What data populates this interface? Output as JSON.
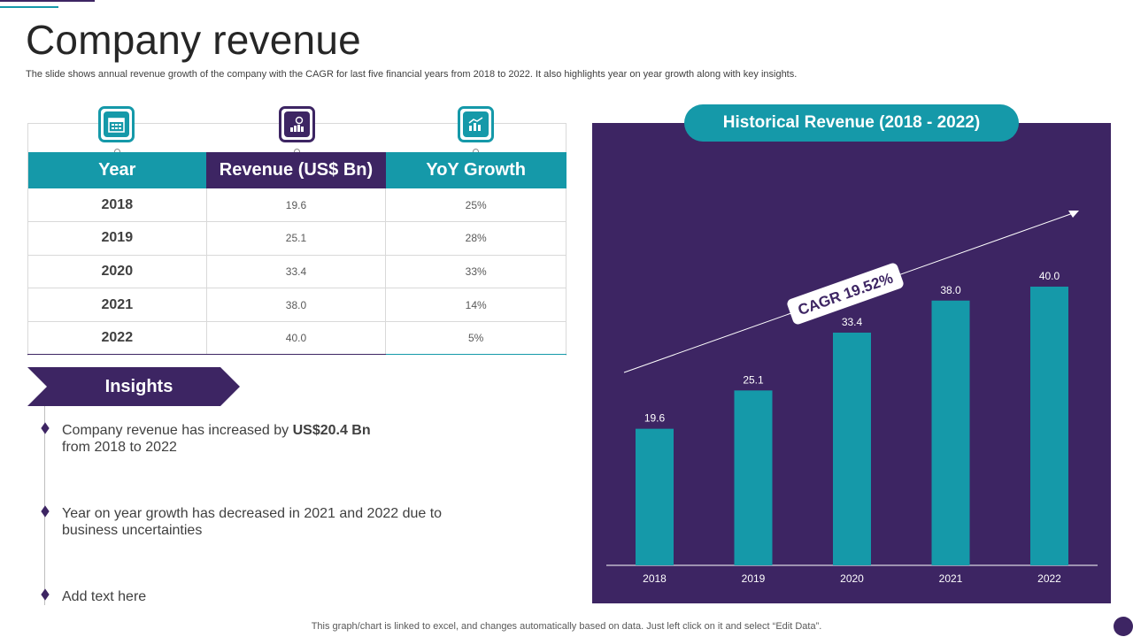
{
  "title": "Company revenue",
  "subtitle": "The slide shows annual revenue growth of the company with the CAGR for last five financial years from 2018 to 2022. It also highlights year on year growth along with key insights.",
  "table": {
    "headers": [
      "Year",
      "Revenue (US$ Bn)",
      "YoY Growth"
    ],
    "rows": [
      [
        "2018",
        "19.6",
        "25%"
      ],
      [
        "2019",
        "25.1",
        "28%"
      ],
      [
        "2020",
        "33.4",
        "33%"
      ],
      [
        "2021",
        "38.0",
        "14%"
      ],
      [
        "2022",
        "40.0",
        "5%"
      ]
    ]
  },
  "insights": {
    "heading": "Insights",
    "item1_prefix": "Company revenue  has increased by ",
    "item1_bold": "US$20.4 Bn",
    "item1_suffix": "from 2018 to 2022",
    "item2": "Year on year growth has decreased in 2021 and 2022 due to business uncertainties",
    "item3": "Add text here"
  },
  "chart_data": {
    "type": "bar",
    "title": "Historical Revenue (2018 - 2022)",
    "categories": [
      "2018",
      "2019",
      "2020",
      "2021",
      "2022"
    ],
    "values": [
      19.6,
      25.1,
      33.4,
      38.0,
      40.0
    ],
    "value_labels": [
      "19.6",
      "25.1",
      "33.4",
      "38.0",
      "40.0"
    ],
    "ylim": [
      0,
      40
    ],
    "xlabel": "",
    "ylabel": "",
    "annotation": "CAGR 19.52%",
    "colors": {
      "bar": "#1599a9",
      "background": "#3d2563",
      "text": "#ffffff"
    }
  },
  "footer": "This graph/chart is linked to excel,  and changes automatically based on data. Just left click on it and select “Edit Data”.",
  "colors": {
    "purple": "#3d2563",
    "teal": "#1599a9"
  }
}
